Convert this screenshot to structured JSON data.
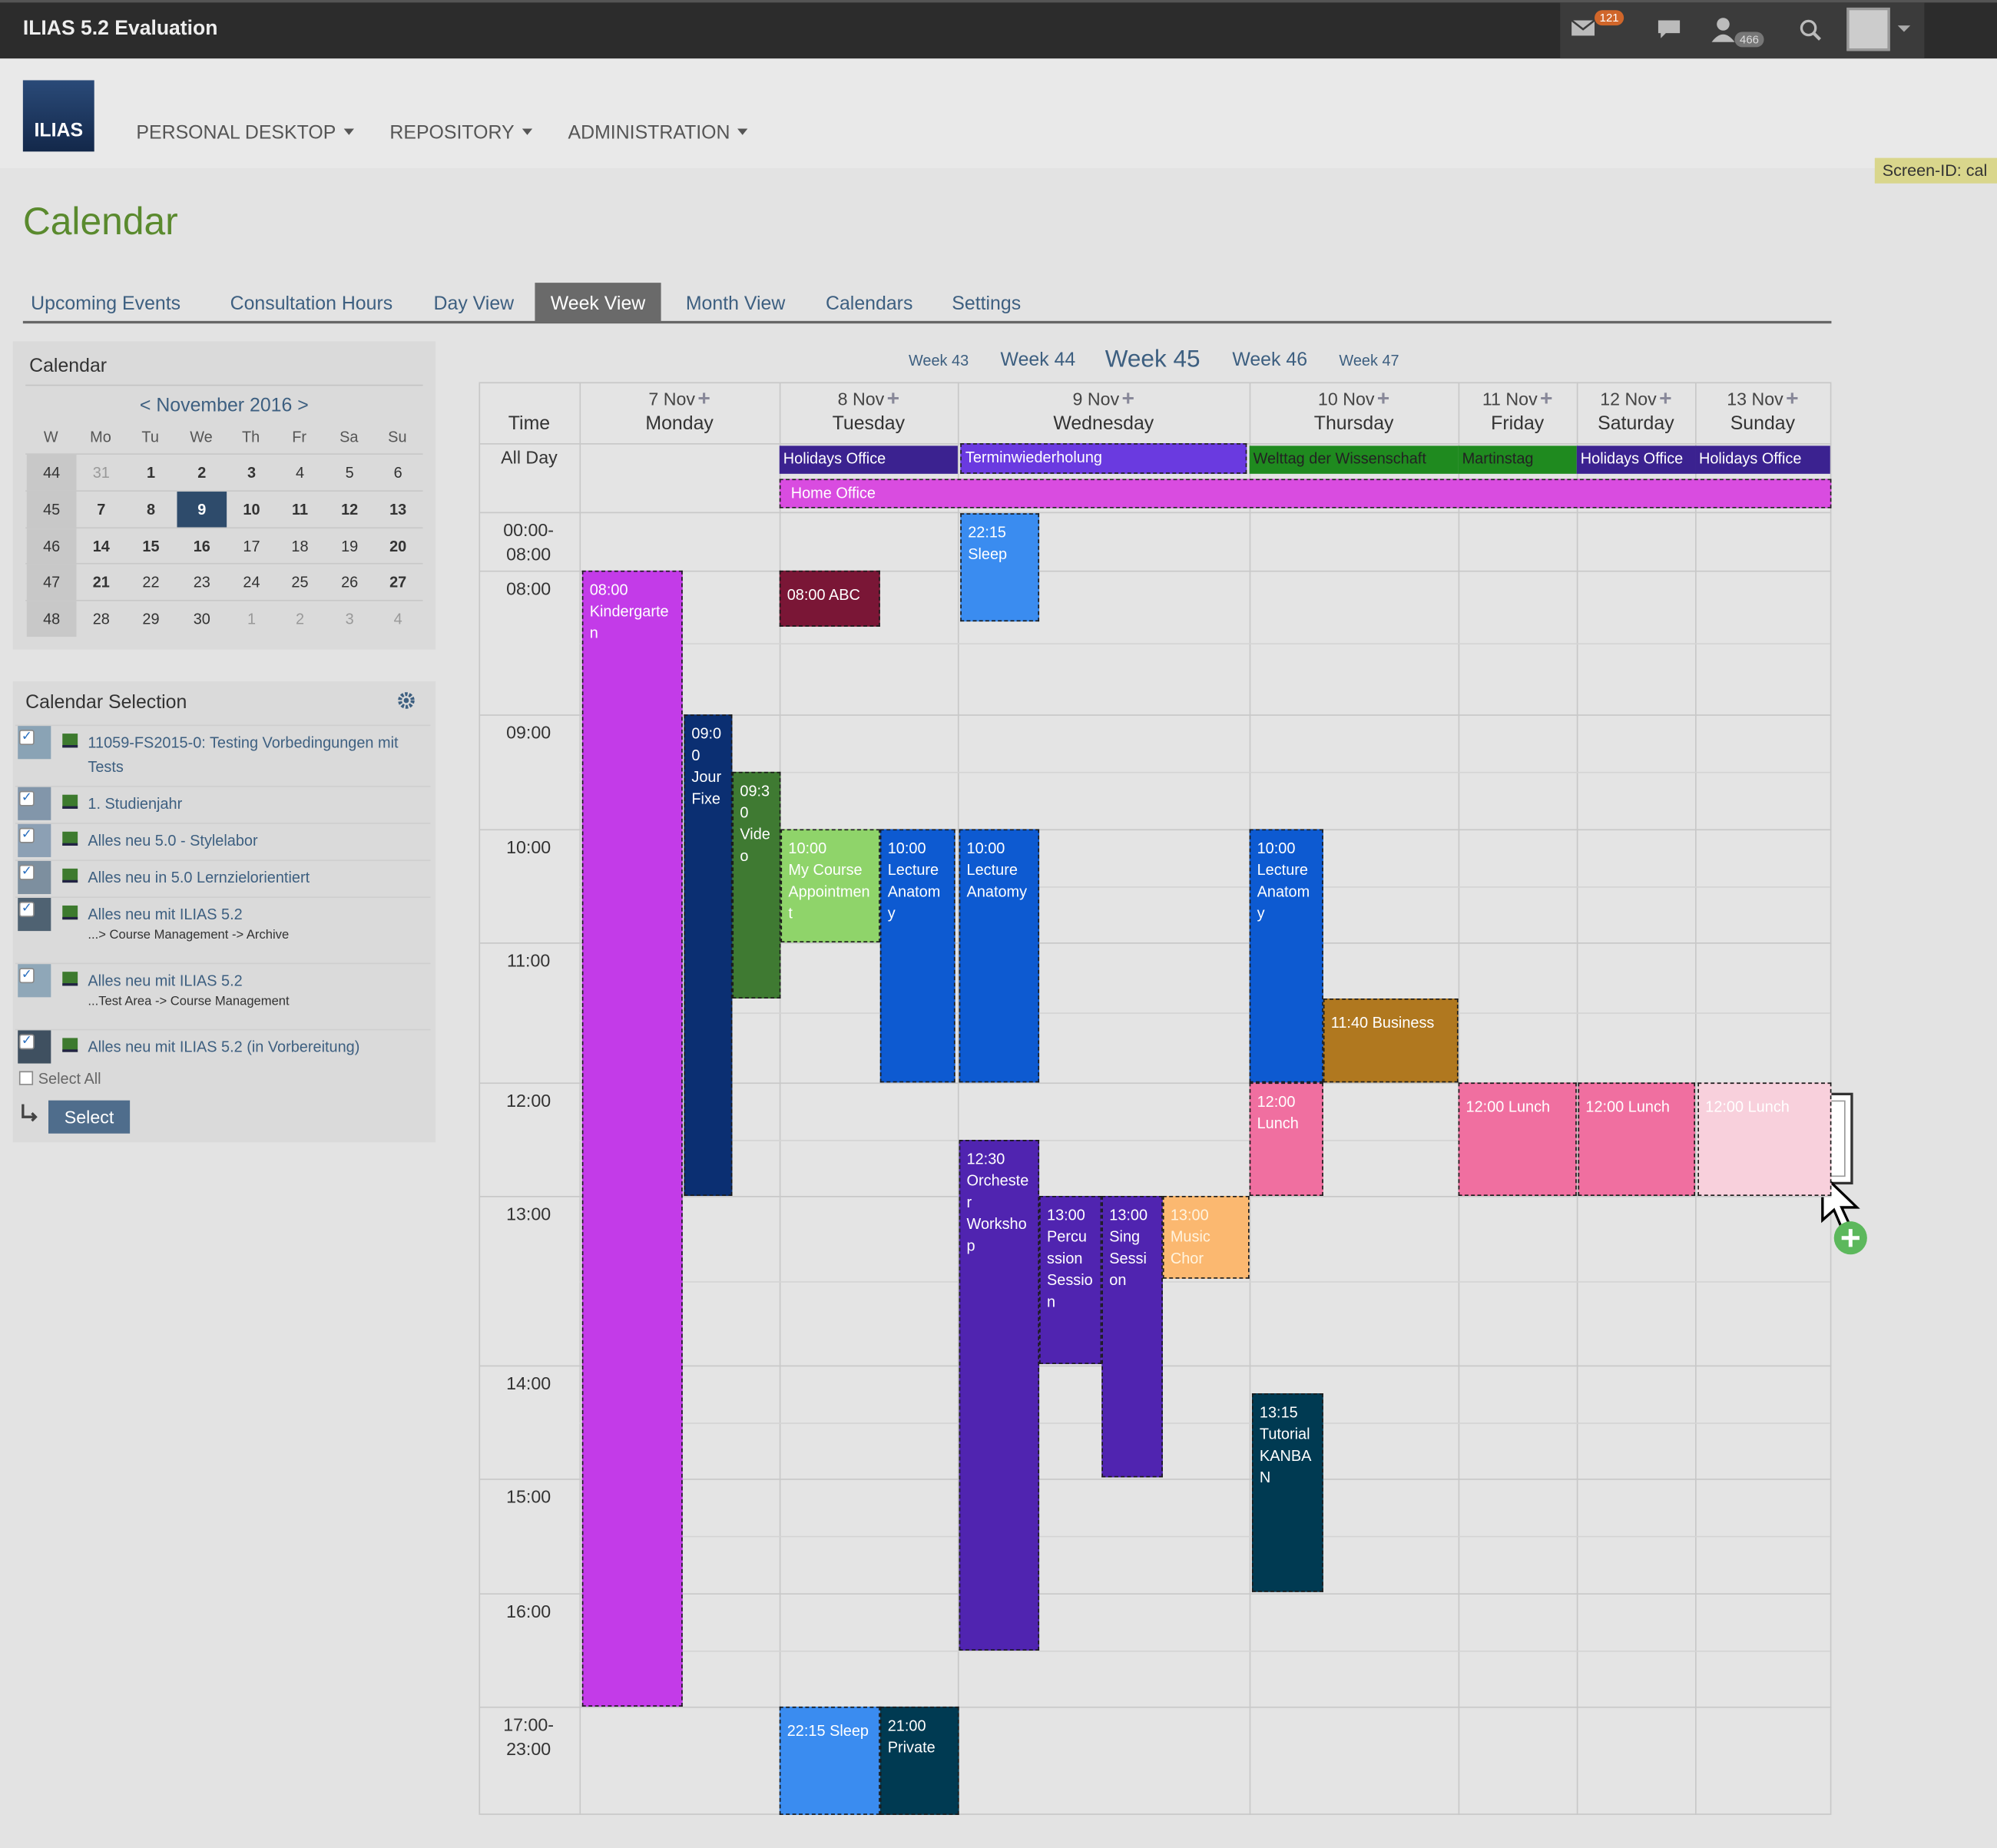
{
  "header": {
    "title": "ILIAS 5.2 Evaluation",
    "mail_count": "121",
    "contacts_count": "466"
  },
  "logo": "ILIAS",
  "nav": [
    "PERSONAL DESKTOP",
    "REPOSITORY",
    "ADMINISTRATION"
  ],
  "screen_id": "Screen-ID: cal",
  "page_title": "Calendar",
  "tabs": [
    "Upcoming Events",
    "Consultation Hours",
    "Day View",
    "Week View",
    "Month View",
    "Calendars",
    "Settings"
  ],
  "mini_calendar": {
    "title": "Calendar",
    "month": "< November 2016 >",
    "weekdays": [
      "W",
      "Mo",
      "Tu",
      "We",
      "Th",
      "Fr",
      "Sa",
      "Su"
    ],
    "rows": [
      [
        "44",
        "31",
        "1",
        "2",
        "3",
        "4",
        "5",
        "6"
      ],
      [
        "45",
        "7",
        "8",
        "9",
        "10",
        "11",
        "12",
        "13"
      ],
      [
        "46",
        "14",
        "15",
        "16",
        "17",
        "18",
        "19",
        "20"
      ],
      [
        "47",
        "21",
        "22",
        "23",
        "24",
        "25",
        "26",
        "27"
      ],
      [
        "48",
        "28",
        "29",
        "30",
        "1",
        "2",
        "3",
        "4"
      ]
    ]
  },
  "calendar_selection": {
    "title": "Calendar Selection",
    "items": [
      {
        "name": "11059-FS2015-0: Testing Vorbedingungen mit Tests"
      },
      {
        "name": "1. Studienjahr"
      },
      {
        "name": "Alles neu 5.0 - Stylelabor"
      },
      {
        "name": "Alles neu in 5.0 Lernzielorientiert"
      },
      {
        "name": "Alles neu mit ILIAS 5.2",
        "path": "...> Course Management -> Archive"
      },
      {
        "name": "Alles neu mit ILIAS 5.2",
        "path": "...Test Area -> Course Management"
      },
      {
        "name": "Alles neu mit ILIAS 5.2 (in Vorbereitung)"
      }
    ],
    "select_all": "Select All",
    "button": "Select"
  },
  "week_nav": [
    "Week 43",
    "Week 44",
    "Week 45",
    "Week 46",
    "Week 47"
  ],
  "week": {
    "time_header": "Time",
    "all_day": "All Day",
    "days": [
      {
        "date": "7 Nov",
        "name": "Monday"
      },
      {
        "date": "8 Nov",
        "name": "Tuesday"
      },
      {
        "date": "9 Nov",
        "name": "Wednesday"
      },
      {
        "date": "10 Nov",
        "name": "Thursday"
      },
      {
        "date": "11 Nov",
        "name": "Friday"
      },
      {
        "date": "12 Nov",
        "name": "Saturday"
      },
      {
        "date": "13 Nov",
        "name": "Sunday"
      }
    ],
    "time_slots": [
      "00:00-08:00",
      "08:00",
      "09:00",
      "10:00",
      "11:00",
      "12:00",
      "13:00",
      "14:00",
      "15:00",
      "16:00",
      "17:00-23:00"
    ],
    "all_day_events": [
      "Holidays Office",
      "Terminwiederholung",
      "Welttag der Wissenschaft",
      "Martinstag",
      "Holidays Office",
      "Holidays Office",
      "Home Office"
    ],
    "events": [
      {
        "time": "08:00",
        "title": "Kindergarten"
      },
      {
        "time": "09:00",
        "title": "Jour Fixe"
      },
      {
        "time": "09:30",
        "title": "Video"
      },
      {
        "time": "08:00",
        "title": "ABC"
      },
      {
        "time": "10:00",
        "title": "My Course Appointment"
      },
      {
        "time": "10:00",
        "title": "Lecture Anatomy"
      },
      {
        "time": "22:15",
        "title": "Sleep"
      },
      {
        "time": "10:00",
        "title": "Lecture Anatomy"
      },
      {
        "time": "12:30",
        "title": "Orchester Workshop"
      },
      {
        "time": "13:00",
        "title": "Percussion Session"
      },
      {
        "time": "13:00",
        "title": "Sing Session"
      },
      {
        "time": "13:00",
        "title": "Music Chor"
      },
      {
        "time": "10:00",
        "title": "Lecture Anatomy"
      },
      {
        "time": "11:40",
        "title": "Business"
      },
      {
        "time": "12:00",
        "title": "Lunch"
      },
      {
        "time": "13:15",
        "title": "Tutorial KANBAN"
      },
      {
        "time": "12:00",
        "title": "Lunch"
      },
      {
        "time": "12:00",
        "title": "Lunch"
      },
      {
        "time": "12:00",
        "title": "Lunch"
      },
      {
        "time": "22:15",
        "title": "Sleep"
      },
      {
        "time": "21:00",
        "title": "Private"
      }
    ]
  }
}
